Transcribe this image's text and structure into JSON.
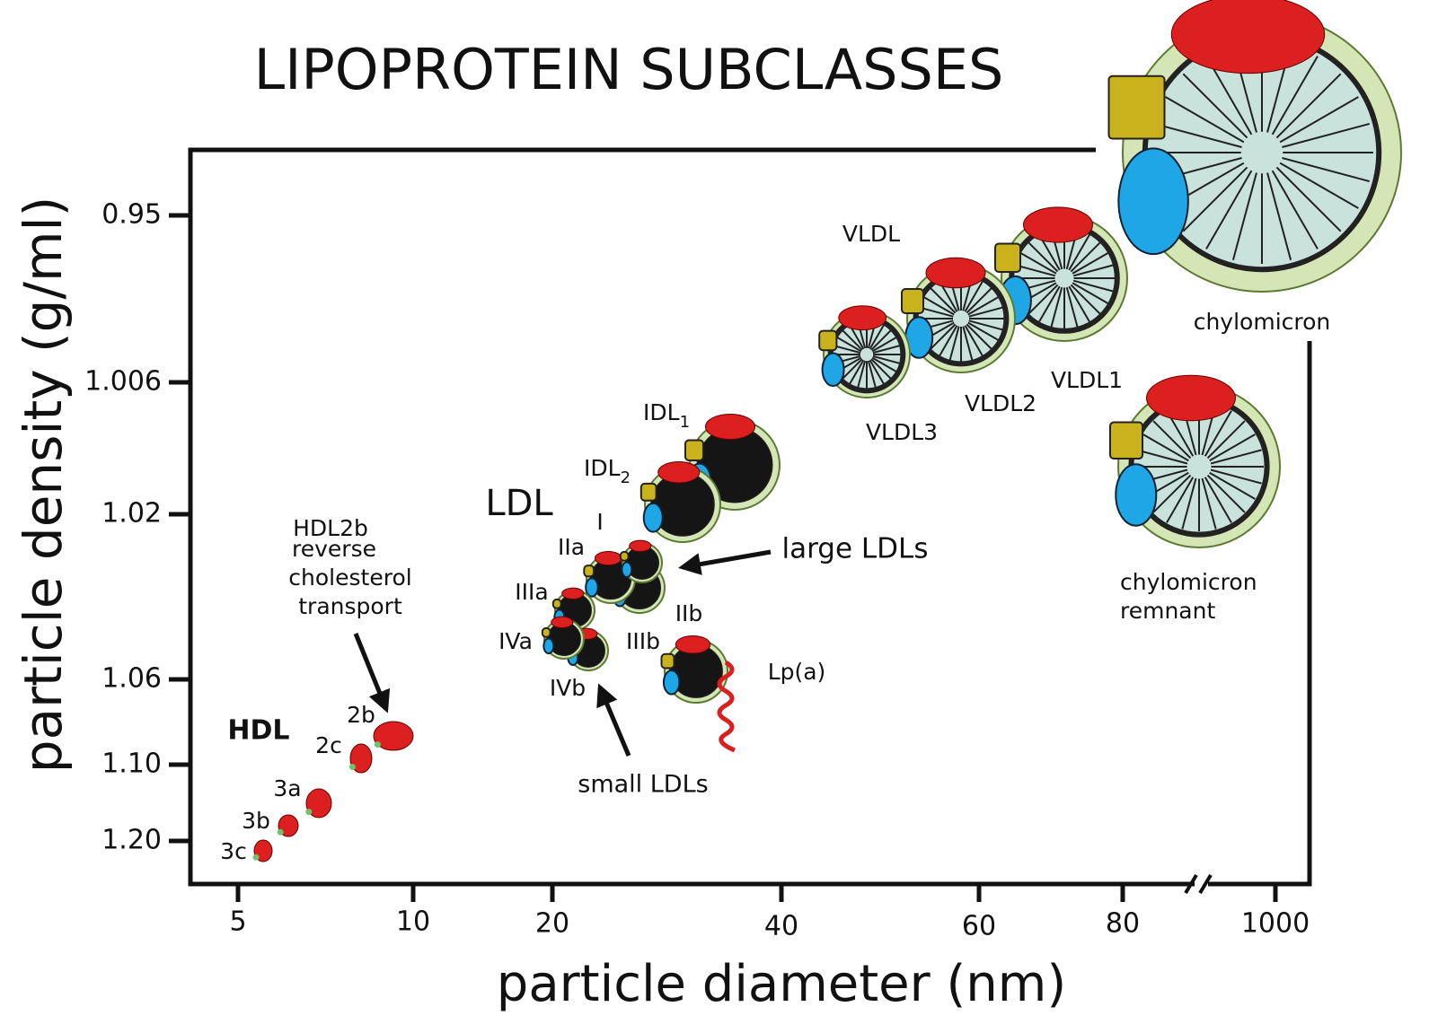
{
  "header": {
    "title": "LIPOPROTEIN SUBCLASSES"
  },
  "y_axis": {
    "label": "particle density (g/ml)",
    "ticks": [
      "0.95",
      "1.006",
      "1.02",
      "1.06",
      "1.10",
      "1.20"
    ]
  },
  "x_axis": {
    "label": "particle diameter (nm)",
    "ticks": [
      "5",
      "10",
      "20",
      "40",
      "60",
      "80",
      "1000"
    ]
  },
  "labels": {
    "hdl": "HDL",
    "hdl_2b": "2b",
    "hdl_2c": "2c",
    "hdl_3a": "3a",
    "hdl_3b": "3b",
    "hdl_3c": "3c",
    "hdl2b_note": [
      "HDL2b",
      "reverse",
      "cholesterol",
      "transport"
    ],
    "ldl": "LDL",
    "ldl_i": "I",
    "ldl_iia": "IIa",
    "ldl_iib": "IIb",
    "ldl_iiia": "IIIa",
    "ldl_iiib": "IIIb",
    "ldl_iva": "IVa",
    "ldl_ivb": "IVb",
    "large_ldls": "large LDLs",
    "small_ldls": "small LDLs",
    "lpa": "Lp(a)",
    "idl2": {
      "text": "IDL",
      "sub": "2"
    },
    "idl1": {
      "text": "IDL",
      "sub": "1"
    },
    "vldl": "VLDL",
    "vldl1": "VLDL1",
    "vldl2": "VLDL2",
    "vldl3": "VLDL3",
    "chylomicron": "chylomicron",
    "chylomicron_remnant": [
      "chylomicron",
      "remnant"
    ]
  }
}
